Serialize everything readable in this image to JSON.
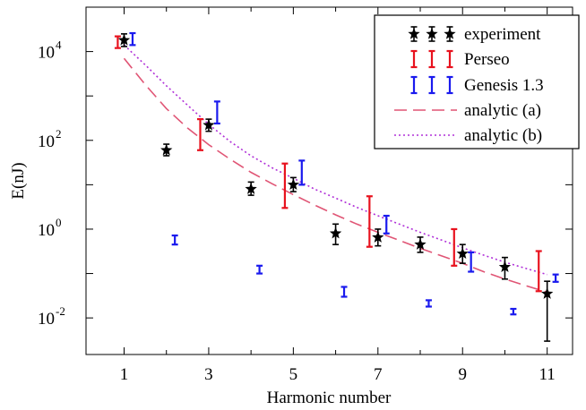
{
  "chart_data": {
    "type": "scatter",
    "xlabel": "Harmonic number",
    "ylabel": "E(nJ)",
    "yscale": "log",
    "xlim": [
      0.1,
      11.6
    ],
    "ylim": [
      0.0015,
      100000
    ],
    "xticks": [
      1,
      3,
      5,
      7,
      9,
      11
    ],
    "yticks": [
      {
        "value": 0.01,
        "base": "10",
        "exp": "-2"
      },
      {
        "value": 1,
        "base": "10",
        "exp": "0"
      },
      {
        "value": 100,
        "base": "10",
        "exp": "2"
      },
      {
        "value": 10000,
        "base": "10",
        "exp": "4"
      }
    ],
    "legend_position": "top-right",
    "grid": false,
    "series": [
      {
        "name": "experiment",
        "kind": "points-errorbar",
        "marker": "star",
        "color": "#000000",
        "points": [
          {
            "x": 1,
            "y": 18000,
            "lo": 13000,
            "hi": 25000
          },
          {
            "x": 2,
            "y": 60,
            "lo": 45,
            "hi": 82
          },
          {
            "x": 3,
            "y": 220,
            "lo": 160,
            "hi": 300
          },
          {
            "x": 4,
            "y": 8,
            "lo": 5.8,
            "hi": 11.5
          },
          {
            "x": 5,
            "y": 10,
            "lo": 7,
            "hi": 14.5
          },
          {
            "x": 6,
            "y": 0.8,
            "lo": 0.45,
            "hi": 1.3
          },
          {
            "x": 7,
            "y": 0.65,
            "lo": 0.42,
            "hi": 1.0
          },
          {
            "x": 8,
            "y": 0.45,
            "lo": 0.3,
            "hi": 0.66
          },
          {
            "x": 9,
            "y": 0.28,
            "lo": 0.17,
            "hi": 0.45
          },
          {
            "x": 10,
            "y": 0.14,
            "lo": 0.075,
            "hi": 0.23
          },
          {
            "x": 11,
            "y": 0.035,
            "lo": 0.003,
            "hi": 0.067
          }
        ]
      },
      {
        "name": "Perseo",
        "kind": "errorbar",
        "color": "#e8121e",
        "points": [
          {
            "x": 0.85,
            "lo": 12000,
            "hi": 22000
          },
          {
            "x": 2.8,
            "lo": 60,
            "hi": 300
          },
          {
            "x": 4.8,
            "lo": 3,
            "hi": 30
          },
          {
            "x": 6.8,
            "lo": 0.4,
            "hi": 5.5
          },
          {
            "x": 8.8,
            "lo": 0.15,
            "hi": 1.0
          },
          {
            "x": 10.8,
            "lo": 0.04,
            "hi": 0.32
          }
        ]
      },
      {
        "name": "Genesis 1.3",
        "kind": "errorbar",
        "color": "#1a1aee",
        "points": [
          {
            "x": 1.2,
            "lo": 14000,
            "hi": 26000
          },
          {
            "x": 2.2,
            "lo": 0.45,
            "hi": 0.72
          },
          {
            "x": 3.2,
            "lo": 240,
            "hi": 750
          },
          {
            "x": 4.2,
            "lo": 0.1,
            "hi": 0.15
          },
          {
            "x": 5.2,
            "lo": 10,
            "hi": 35
          },
          {
            "x": 6.2,
            "lo": 0.03,
            "hi": 0.05
          },
          {
            "x": 7.2,
            "lo": 0.8,
            "hi": 2.0
          },
          {
            "x": 8.2,
            "lo": 0.018,
            "hi": 0.025
          },
          {
            "x": 9.2,
            "lo": 0.11,
            "hi": 0.3
          },
          {
            "x": 10.2,
            "lo": 0.012,
            "hi": 0.016
          },
          {
            "x": 11.2,
            "lo": 0.065,
            "hi": 0.095
          }
        ]
      },
      {
        "name": "analytic (a)",
        "kind": "curve",
        "style": "dashed",
        "color": "#e05575",
        "x": [
          1,
          1.5,
          2,
          2.5,
          3,
          3.5,
          4,
          4.5,
          5,
          5.5,
          6,
          6.5,
          7,
          7.5,
          8,
          8.5,
          9,
          9.5,
          10,
          10.5,
          11
        ],
        "y": [
          7000,
          1800,
          520,
          190,
          80,
          38,
          19,
          10.5,
          6,
          3.5,
          2.1,
          1.3,
          0.85,
          0.56,
          0.37,
          0.25,
          0.17,
          0.11,
          0.075,
          0.053,
          0.038
        ]
      },
      {
        "name": "analytic (b)",
        "kind": "curve",
        "style": "dotted",
        "color": "#b030d8",
        "x": [
          1,
          1.5,
          2,
          2.5,
          3,
          3.5,
          4,
          4.5,
          5,
          5.5,
          6,
          6.5,
          7,
          7.5,
          8,
          8.5,
          9,
          9.5,
          10,
          10.5,
          11
        ],
        "y": [
          14000,
          5000,
          1700,
          620,
          230,
          95,
          45,
          24,
          14,
          8,
          5,
          3.1,
          2,
          1.3,
          0.85,
          0.57,
          0.38,
          0.26,
          0.18,
          0.13,
          0.095
        ]
      }
    ]
  }
}
